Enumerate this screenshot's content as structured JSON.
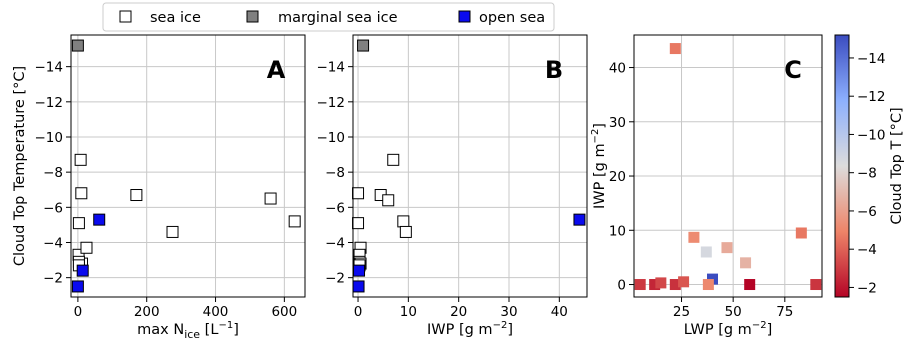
{
  "colors": {
    "sea_ice": "#ffffff",
    "marginal_sea_ice": "#808080",
    "open_sea": "#0a0aee",
    "grid": "#c8c8c8"
  },
  "legend": {
    "placement": "top-center",
    "entries": [
      {
        "key": "sea_ice",
        "label": "sea ice",
        "color": "#ffffff"
      },
      {
        "key": "marginal_sea_ice",
        "label": "marginal sea ice",
        "color": "#808080"
      },
      {
        "key": "open_sea",
        "label": "open sea",
        "color": "#0a0aee"
      }
    ]
  },
  "chart_data": [
    {
      "type": "scatter",
      "panel_label": "A",
      "xlabel": "max N",
      "xlabel_sub": "ice",
      "xlabel_unit": " [L",
      "xlabel_sup": "−1",
      "xlabel_end": "]",
      "ylabel": "Cloud Top Temperature [°C]",
      "xlim": [
        -20,
        660
      ],
      "ylim": [
        -0.9,
        -15.8
      ],
      "y_inverted": true,
      "grid": true,
      "xticks": [
        0,
        200,
        400,
        600
      ],
      "xtick_labels": [
        "0",
        "200",
        "400",
        "600"
      ],
      "yticks": [
        -14,
        -12,
        -10,
        -8,
        -6,
        -4,
        -2
      ],
      "ytick_labels": [
        "−14",
        "−12",
        "−10",
        "−8",
        "−6",
        "−4",
        "−2"
      ],
      "series": [
        {
          "key": "sea_ice",
          "x": [
            8,
            10,
            12,
            3,
            2,
            3,
            25,
            3,
            170,
            275,
            560,
            630
          ],
          "y": [
            -8.7,
            -6.8,
            -2.8,
            -5.1,
            -3.3,
            -2.9,
            -3.7,
            -2.7,
            -6.7,
            -4.6,
            -6.5,
            -5.2
          ]
        },
        {
          "key": "marginal_sea_ice",
          "x": [
            0
          ],
          "y": [
            -15.2
          ]
        },
        {
          "key": "open_sea",
          "x": [
            62,
            14,
            0
          ],
          "y": [
            -5.3,
            -2.4,
            -1.5
          ]
        }
      ]
    },
    {
      "type": "scatter",
      "panel_label": "B",
      "xlabel": "IWP [g m",
      "xlabel_sup": "−2",
      "xlabel_end": "]",
      "xlim": [
        -1,
        45.5
      ],
      "ylim": [
        -0.9,
        -15.8
      ],
      "y_inverted": true,
      "grid": true,
      "xticks": [
        0,
        10,
        20,
        30,
        40
      ],
      "xtick_labels": [
        "0",
        "10",
        "20",
        "30",
        "40"
      ],
      "yticks": [
        -14,
        -12,
        -10,
        -8,
        -6,
        -4,
        -2
      ],
      "ytick_labels": [
        "−14",
        "−12",
        "−10",
        "−8",
        "−6",
        "−4",
        "−2"
      ],
      "series": [
        {
          "key": "sea_ice",
          "x": [
            0,
            0,
            0.5,
            0.3,
            0.3,
            0.5,
            4.5,
            6,
            7,
            9,
            9.5,
            0.3
          ],
          "y": [
            -6.8,
            -5.1,
            -3.7,
            -3.3,
            -2.9,
            -2.8,
            -6.7,
            -6.4,
            -8.7,
            -5.2,
            -4.6,
            -2.7
          ]
        },
        {
          "key": "marginal_sea_ice",
          "x": [
            1
          ],
          "y": [
            -15.2
          ]
        },
        {
          "key": "open_sea",
          "x": [
            44,
            0.2,
            0.1
          ],
          "y": [
            -5.3,
            -2.4,
            -1.5
          ]
        }
      ]
    },
    {
      "type": "scatter",
      "panel_label": "C",
      "xlabel": "LWP [g m",
      "xlabel_sup": "−2",
      "xlabel_end": "]",
      "ylabel": "IWP [g m",
      "ylabel_sup": "−2",
      "ylabel_end": "]",
      "xlim": [
        2,
        93
      ],
      "ylim": [
        -2.3,
        46
      ],
      "grid": true,
      "xticks": [
        25,
        50,
        75
      ],
      "xtick_labels": [
        "25",
        "50",
        "75"
      ],
      "yticks": [
        0,
        10,
        20,
        30,
        40
      ],
      "ytick_labels": [
        "0",
        "10",
        "20",
        "30",
        "40"
      ],
      "colorbar": {
        "label": "Cloud Top T [°C]",
        "min": -1.5,
        "max": -15.2,
        "colormap": "coolwarm",
        "ticks": [
          -2,
          -4,
          -6,
          -8,
          -10,
          -12,
          -14
        ],
        "tick_labels": [
          "−2",
          "−4",
          "−6",
          "−8",
          "−10",
          "−12",
          "−14"
        ]
      },
      "points": [
        {
          "x": 22,
          "y": 43.5,
          "t": -4.6
        },
        {
          "x": 31,
          "y": 8.7,
          "t": -5.2
        },
        {
          "x": 37,
          "y": 6,
          "t": -8.7
        },
        {
          "x": 47,
          "y": 6.8,
          "t": -6.4
        },
        {
          "x": 83,
          "y": 9.5,
          "t": -4.6
        },
        {
          "x": 56,
          "y": 4,
          "t": -6.7
        },
        {
          "x": 40,
          "y": 1,
          "t": -15.2
        },
        {
          "x": 5,
          "y": 0,
          "t": -2.9
        },
        {
          "x": 12,
          "y": 0,
          "t": -2.4
        },
        {
          "x": 15,
          "y": 0.3,
          "t": -3.3
        },
        {
          "x": 22,
          "y": 0,
          "t": -2.7
        },
        {
          "x": 26,
          "y": 0.5,
          "t": -3.7
        },
        {
          "x": 38,
          "y": 0,
          "t": -5.1
        },
        {
          "x": 58,
          "y": 0,
          "t": -1.5
        },
        {
          "x": 90,
          "y": 0,
          "t": -2.8
        }
      ]
    }
  ]
}
